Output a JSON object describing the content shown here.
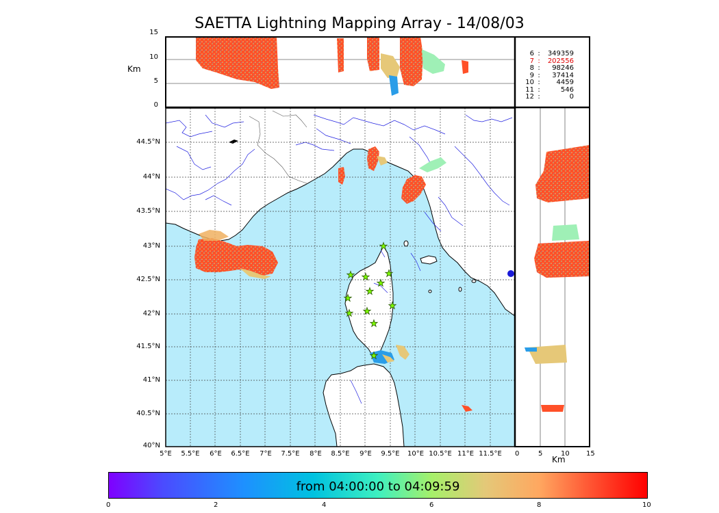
{
  "title": "SAETTA Lightning Mapping Array - 14/08/03",
  "top_panel": {
    "axis_label": "Km",
    "y_ticks": [
      "15",
      "10",
      "5",
      "0"
    ]
  },
  "side_panel": {
    "axis_label": "Km",
    "x_ticks": [
      "0",
      "5",
      "10",
      "15"
    ]
  },
  "map": {
    "lat_ticks": [
      "44.5°N",
      "44°N",
      "43.5°N",
      "43°N",
      "42.5°N",
      "42°N",
      "41.5°N",
      "41°N",
      "40.5°N",
      "40°N"
    ],
    "lon_ticks": [
      "5°E",
      "5.5°E",
      "6°E",
      "6.5°E",
      "7°E",
      "7.5°E",
      "8°E",
      "8.5°E",
      "9°E",
      "9.5°E",
      "10°E",
      "10.5°E",
      "11°E",
      "11.5°E"
    ],
    "sea_color": "#b8ecfb",
    "land_color": "#ffffff",
    "river_color": "#2020e0",
    "station_color": "#7fff00"
  },
  "legend": [
    {
      "key": "6",
      "sep": ":",
      "value": "349359"
    },
    {
      "key": "7",
      "sep": ":",
      "value": "202556"
    },
    {
      "key": "8",
      "sep": ":",
      "value": "98246"
    },
    {
      "key": "9",
      "sep": ":",
      "value": "37414"
    },
    {
      "key": "10",
      "sep": ":",
      "value": "4459"
    },
    {
      "key": "11",
      "sep": ":",
      "value": "546"
    },
    {
      "key": "12",
      "sep": ":",
      "value": "0"
    }
  ],
  "colorbar": {
    "caption": "from 04:00:00 to 04:09:59",
    "ticks": [
      "0",
      "2",
      "4",
      "6",
      "8",
      "10"
    ]
  }
}
